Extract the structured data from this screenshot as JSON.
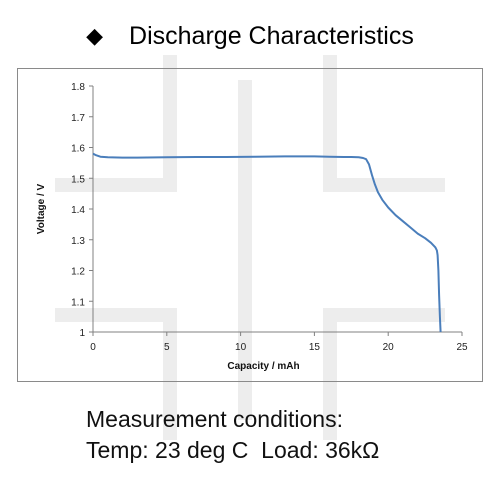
{
  "title": {
    "bullet_icon": "diamond-bullet-icon",
    "text": "Discharge Characteristics"
  },
  "caption": {
    "line1": "Measurement conditions:",
    "line2": "Temp: 23 deg C  Load: 36kΩ"
  },
  "colors": {
    "series": "#4a7ebb",
    "axis": "#808080",
    "watermark": "#ececec"
  },
  "chart_data": {
    "type": "line",
    "title": "",
    "xlabel": "Capacity  /  mAh",
    "ylabel": "Voltage  /  V",
    "xlim": [
      0,
      25
    ],
    "ylim": [
      1.0,
      1.8
    ],
    "xticks": [
      0,
      5,
      10,
      15,
      20,
      25
    ],
    "xtick_labels": [
      "0",
      "5",
      "10",
      "15",
      "20",
      "25"
    ],
    "yticks": [
      1.0,
      1.1,
      1.2,
      1.3,
      1.4,
      1.5,
      1.6,
      1.7,
      1.8
    ],
    "ytick_labels": [
      "1",
      "1.1",
      "1.2",
      "1.3",
      "1.4",
      "1.5",
      "1.6",
      "1.7",
      "1.8"
    ],
    "grid": false,
    "legend": "none",
    "series": [
      {
        "x": [
          0,
          0.2,
          0.5,
          1,
          2,
          3,
          5,
          7,
          9,
          11,
          13,
          15,
          16,
          17,
          17.5,
          18,
          18.3,
          18.5,
          18.7,
          18.9,
          19.1,
          19.3,
          19.6,
          20,
          20.5,
          21,
          21.5,
          22,
          22.5,
          22.9,
          23.1,
          23.2,
          23.3,
          23.35,
          23.4,
          23.45,
          23.5,
          23.55
        ],
        "y": [
          1.58,
          1.575,
          1.57,
          1.568,
          1.567,
          1.567,
          1.568,
          1.569,
          1.569,
          1.57,
          1.571,
          1.571,
          1.57,
          1.569,
          1.569,
          1.568,
          1.566,
          1.562,
          1.545,
          1.51,
          1.48,
          1.455,
          1.43,
          1.405,
          1.38,
          1.36,
          1.34,
          1.32,
          1.305,
          1.29,
          1.28,
          1.275,
          1.265,
          1.25,
          1.2,
          1.12,
          1.05,
          1.0
        ]
      }
    ]
  }
}
